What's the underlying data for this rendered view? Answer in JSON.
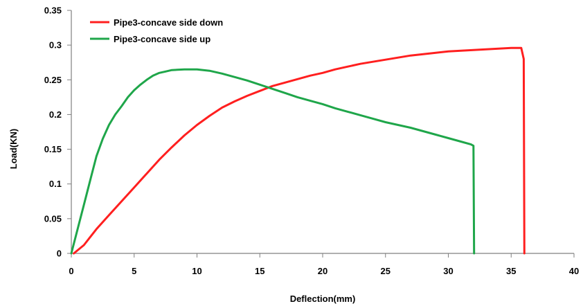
{
  "chart_data": {
    "type": "line",
    "title": "",
    "xlabel": "Deflection(mm)",
    "ylabel": "Load(KN)",
    "xlim": [
      0,
      40
    ],
    "ylim": [
      0,
      0.35
    ],
    "x_ticks": [
      "0",
      "5",
      "10",
      "15",
      "20",
      "25",
      "30",
      "35",
      "40"
    ],
    "y_ticks": [
      "0",
      "0.05",
      "0.1",
      "0.15",
      "0.2",
      "0.25",
      "0.3",
      "0.35"
    ],
    "grid": false,
    "legend_position": "top-left",
    "series": [
      {
        "name": "Pipe3-concave side down",
        "color": "#ff1f1f",
        "points": [
          [
            0.2,
            0.0
          ],
          [
            1,
            0.012
          ],
          [
            2,
            0.035
          ],
          [
            3,
            0.055
          ],
          [
            4,
            0.075
          ],
          [
            5,
            0.095
          ],
          [
            6,
            0.115
          ],
          [
            7,
            0.135
          ],
          [
            8,
            0.153
          ],
          [
            9,
            0.17
          ],
          [
            10,
            0.185
          ],
          [
            11,
            0.198
          ],
          [
            12,
            0.21
          ],
          [
            13,
            0.219
          ],
          [
            14,
            0.227
          ],
          [
            15,
            0.234
          ],
          [
            16,
            0.241
          ],
          [
            17,
            0.246
          ],
          [
            18,
            0.251
          ],
          [
            19,
            0.256
          ],
          [
            20,
            0.26
          ],
          [
            21,
            0.265
          ],
          [
            22,
            0.269
          ],
          [
            23,
            0.273
          ],
          [
            24,
            0.276
          ],
          [
            25,
            0.279
          ],
          [
            26,
            0.282
          ],
          [
            27,
            0.285
          ],
          [
            28,
            0.287
          ],
          [
            29,
            0.289
          ],
          [
            30,
            0.291
          ],
          [
            31,
            0.292
          ],
          [
            32,
            0.293
          ],
          [
            33,
            0.294
          ],
          [
            34,
            0.295
          ],
          [
            35,
            0.296
          ],
          [
            35.8,
            0.296
          ],
          [
            36,
            0.28
          ],
          [
            36.05,
            0.0
          ]
        ]
      },
      {
        "name": "Pipe3-concave side up",
        "color": "#1fa64a",
        "points": [
          [
            0,
            0.0
          ],
          [
            0.5,
            0.035
          ],
          [
            1,
            0.07
          ],
          [
            1.5,
            0.105
          ],
          [
            2,
            0.14
          ],
          [
            2.5,
            0.165
          ],
          [
            3,
            0.185
          ],
          [
            3.5,
            0.2
          ],
          [
            4,
            0.212
          ],
          [
            4.5,
            0.225
          ],
          [
            5,
            0.235
          ],
          [
            5.5,
            0.243
          ],
          [
            6,
            0.25
          ],
          [
            6.5,
            0.256
          ],
          [
            7,
            0.26
          ],
          [
            7.5,
            0.262
          ],
          [
            8,
            0.264
          ],
          [
            9,
            0.265
          ],
          [
            10,
            0.265
          ],
          [
            11,
            0.263
          ],
          [
            12,
            0.259
          ],
          [
            13,
            0.254
          ],
          [
            14,
            0.249
          ],
          [
            15,
            0.243
          ],
          [
            16,
            0.237
          ],
          [
            17,
            0.231
          ],
          [
            18,
            0.225
          ],
          [
            19,
            0.22
          ],
          [
            20,
            0.215
          ],
          [
            21,
            0.209
          ],
          [
            22,
            0.204
          ],
          [
            23,
            0.199
          ],
          [
            24,
            0.194
          ],
          [
            25,
            0.189
          ],
          [
            26,
            0.185
          ],
          [
            27,
            0.181
          ],
          [
            28,
            0.176
          ],
          [
            29,
            0.171
          ],
          [
            30,
            0.166
          ],
          [
            31,
            0.161
          ],
          [
            31.8,
            0.157
          ],
          [
            32,
            0.155
          ],
          [
            32.05,
            0.0
          ]
        ]
      }
    ]
  }
}
